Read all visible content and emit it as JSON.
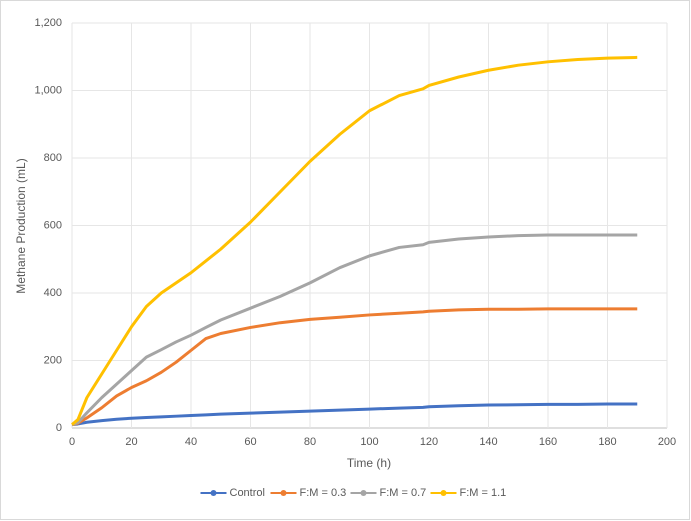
{
  "chart_data": {
    "type": "line",
    "x_label": "Time (h)",
    "y_label": "Methane Production (mL)",
    "x": [
      0,
      2,
      5,
      10,
      15,
      20,
      25,
      30,
      35,
      40,
      45,
      50,
      60,
      70,
      80,
      90,
      100,
      110,
      118,
      120,
      130,
      140,
      150,
      160,
      170,
      180,
      190
    ],
    "series": [
      {
        "name": "Control",
        "color": "#4472c4",
        "values": [
          10,
          12,
          17,
          22,
          26,
          29,
          31,
          33,
          35,
          37,
          39,
          41,
          44,
          47,
          50,
          53,
          56,
          59,
          61,
          63,
          66,
          68,
          69,
          70,
          70,
          71,
          71
        ]
      },
      {
        "name": "F:M = 0.3",
        "color": "#ed7d31",
        "values": [
          10,
          14,
          30,
          60,
          95,
          120,
          140,
          165,
          195,
          230,
          265,
          280,
          298,
          312,
          322,
          328,
          335,
          340,
          344,
          346,
          350,
          352,
          352,
          353,
          353,
          353,
          353
        ]
      },
      {
        "name": "F:M = 0.7",
        "color": "#a5a5a5",
        "values": [
          10,
          16,
          45,
          90,
          130,
          170,
          210,
          232,
          255,
          275,
          298,
          320,
          355,
          390,
          430,
          475,
          510,
          535,
          543,
          550,
          560,
          566,
          570,
          572,
          572,
          572,
          572
        ]
      },
      {
        "name": "F:M = 1.1",
        "color": "#ffc000",
        "values": [
          10,
          25,
          90,
          160,
          230,
          300,
          360,
          400,
          430,
          460,
          495,
          530,
          610,
          700,
          790,
          870,
          940,
          985,
          1005,
          1015,
          1040,
          1060,
          1075,
          1085,
          1092,
          1096,
          1098
        ]
      }
    ],
    "xlim": [
      0,
      200
    ],
    "xticks": [
      0,
      20,
      40,
      60,
      80,
      100,
      120,
      140,
      160,
      180,
      200
    ],
    "ylim": [
      0,
      1200
    ],
    "yticks": [
      0,
      200,
      400,
      600,
      800,
      {
        "value": 1000,
        "label": "1,000"
      },
      {
        "value": 1200,
        "label": "1,200"
      }
    ],
    "grid": true,
    "legend": "bottom"
  }
}
